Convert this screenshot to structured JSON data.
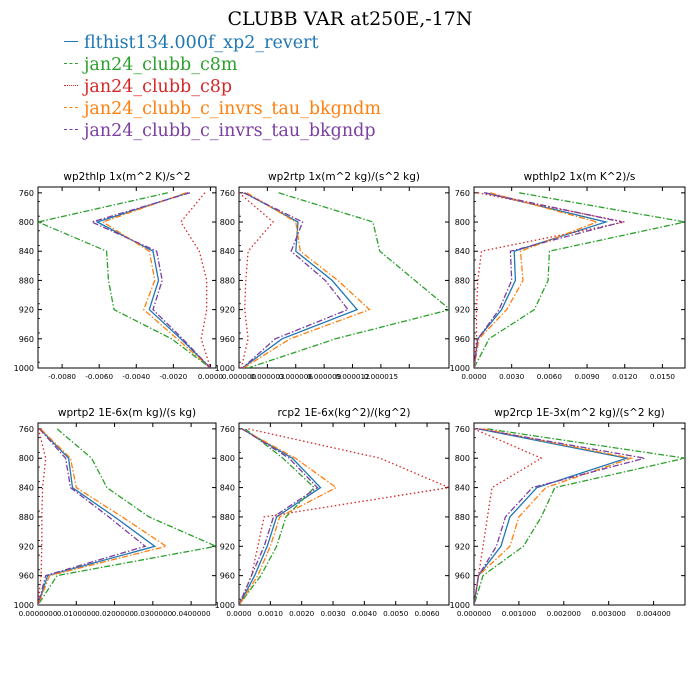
{
  "figure": {
    "title": "CLUBB VAR at250E,-17N"
  },
  "legend": [
    {
      "name": "flthist134.000f_xp2_revert",
      "color": "#1f77b4",
      "dash": "solid"
    },
    {
      "name": "jan24_clubb_c8m",
      "color": "#2ca02c",
      "dash": "dashdot"
    },
    {
      "name": "jan24_clubb_c8p",
      "color": "#d62728",
      "dash": "dotted"
    },
    {
      "name": "jan24_clubb_c_invrs_tau_bkgndm",
      "color": "#ff7f0e",
      "dash": "dashdot"
    },
    {
      "name": "jan24_clubb_c_invrs_tau_bkgndp",
      "color": "#7b3fa0",
      "dash": "dashdot"
    }
  ],
  "chart_data": [
    {
      "type": "line",
      "title": "wp2thlp   1x(m^2 K)/s^2",
      "y": [
        760,
        800,
        840,
        880,
        920,
        960,
        1000
      ],
      "yticks": [
        760,
        800,
        840,
        880,
        920,
        960,
        1000
      ],
      "ylim": [
        1000,
        752
      ],
      "xlim": [
        -0.0093,
        0.0003
      ],
      "xticks": [
        -0.008,
        -0.006,
        -0.004,
        -0.002,
        0.0
      ],
      "xticklabels": [
        "-0.0080",
        "-0.0060",
        "-0.0040",
        "-0.0020",
        "0.0000"
      ],
      "series": [
        {
          "name": "flthist134.000f_xp2_revert",
          "values": [
            -0.0012,
            -0.0061,
            -0.0031,
            -0.0028,
            -0.0033,
            -0.0016,
            0.0
          ]
        },
        {
          "name": "jan24_clubb_c8m",
          "values": [
            -0.0023,
            -0.0093,
            -0.0056,
            -0.0055,
            -0.0052,
            -0.0021,
            0.0
          ]
        },
        {
          "name": "jan24_clubb_c8p",
          "values": [
            -0.0003,
            -0.0016,
            -0.0006,
            -0.0002,
            -0.0002,
            -0.0005,
            0.0
          ]
        },
        {
          "name": "jan24_clubb_c_invrs_tau_bkgndm",
          "values": [
            -0.0013,
            -0.0058,
            -0.0033,
            -0.003,
            -0.0036,
            -0.0018,
            0.0
          ]
        },
        {
          "name": "jan24_clubb_c_invrs_tau_bkgndp",
          "values": [
            -0.0011,
            -0.0064,
            -0.0029,
            -0.0026,
            -0.0031,
            -0.0015,
            0.0
          ]
        }
      ]
    },
    {
      "type": "line",
      "title": "wp2rtp   1x(m^2 kg)/(s^2 kg)",
      "y": [
        760,
        800,
        840,
        880,
        920,
        960,
        1000
      ],
      "yticks": [
        760,
        800,
        840,
        880,
        920,
        960,
        1000
      ],
      "ylim": [
        1000,
        752
      ],
      "xlim": [
        0.0,
        1.85e-05
      ],
      "xticks": [
        0.0,
        2.5e-06,
        5e-06,
        7.5e-06,
        1e-05,
        1.25e-05,
        1.5e-05
      ],
      "xticklabels": [
        "0.000000",
        "0.000003",
        "0.000006",
        "0.000009",
        "0.000012",
        "0.000015",
        ""
      ],
      "series": [
        {
          "name": "flthist134.000f_xp2_revert",
          "values": [
            5e-07,
            5.2e-06,
            5e-06,
            8.2e-06,
            1.04e-05,
            3.8e-06,
            3e-07
          ]
        },
        {
          "name": "jan24_clubb_c8m",
          "values": [
            3.5e-06,
            1.18e-05,
            1.24e-05,
            1.55e-05,
            1.86e-05,
            8.5e-06,
            8e-07
          ]
        },
        {
          "name": "jan24_clubb_c8p",
          "values": [
            0.0,
            3e-06,
            8e-07,
            6e-07,
            5e-07,
            8e-07,
            2e-07
          ]
        },
        {
          "name": "jan24_clubb_c_invrs_tau_bkgndm",
          "values": [
            7e-07,
            5e-06,
            5.4e-06,
            8.7e-06,
            1.15e-05,
            4.5e-06,
            4e-07
          ]
        },
        {
          "name": "jan24_clubb_c_invrs_tau_bkgndp",
          "values": [
            4e-07,
            5.6e-06,
            4.6e-06,
            7.6e-06,
            9.6e-06,
            3.2e-06,
            3e-07
          ]
        }
      ]
    },
    {
      "type": "line",
      "title": "wpthlp2   1x(m K^2)/s",
      "y": [
        760,
        800,
        840,
        880,
        920,
        960,
        1000
      ],
      "yticks": [
        760,
        800,
        840,
        880,
        920,
        960,
        1000
      ],
      "ylim": [
        1000,
        752
      ],
      "xlim": [
        0.0,
        0.0168
      ],
      "xticks": [
        0.0,
        0.003,
        0.006,
        0.009,
        0.012,
        0.015
      ],
      "xticklabels": [
        "0.0000",
        "0.0030",
        "0.0060",
        "0.0090",
        "0.0120",
        "0.0150"
      ],
      "series": [
        {
          "name": "flthist134.000f_xp2_revert",
          "values": [
            0.0009,
            0.0105,
            0.0032,
            0.0033,
            0.0022,
            0.0003,
            0.0
          ]
        },
        {
          "name": "jan24_clubb_c8m",
          "values": [
            0.0036,
            0.0168,
            0.006,
            0.0059,
            0.0048,
            0.0012,
            0.0
          ]
        },
        {
          "name": "jan24_clubb_c8p",
          "values": [
            0.0003,
            0.012,
            0.0006,
            0.0003,
            0.0002,
            0.0002,
            0.0
          ]
        },
        {
          "name": "jan24_clubb_c_invrs_tau_bkgndm",
          "values": [
            0.0013,
            0.0098,
            0.0037,
            0.0039,
            0.0026,
            0.0004,
            0.0
          ]
        },
        {
          "name": "jan24_clubb_c_invrs_tau_bkgndp",
          "values": [
            0.0008,
            0.0118,
            0.0029,
            0.003,
            0.002,
            0.0003,
            0.0
          ]
        }
      ]
    },
    {
      "type": "line",
      "title": "wprtp2   1E-6x(m kg)/(s kg)",
      "y": [
        760,
        800,
        840,
        880,
        920,
        960,
        1000
      ],
      "yticks": [
        760,
        800,
        840,
        880,
        920,
        960,
        1000
      ],
      "ylim": [
        1000,
        752
      ],
      "xlim": [
        0.0,
        0.0465
      ],
      "xticks": [
        0.0,
        0.01,
        0.02,
        0.03,
        0.04
      ],
      "xticklabels": [
        "0.0000000",
        "0.0100000",
        "0.0200000",
        "0.0300000",
        "0.0400000"
      ],
      "series": [
        {
          "name": "flthist134.000f_xp2_revert",
          "values": [
            0.0005,
            0.008,
            0.009,
            0.02,
            0.0305,
            0.0025,
            0.0
          ]
        },
        {
          "name": "jan24_clubb_c8m",
          "values": [
            0.005,
            0.014,
            0.018,
            0.029,
            0.0465,
            0.005,
            0.0
          ]
        },
        {
          "name": "jan24_clubb_c8p",
          "values": [
            0.0001,
            0.002,
            0.0012,
            0.001,
            0.001,
            0.0008,
            0.0
          ]
        },
        {
          "name": "jan24_clubb_c_invrs_tau_bkgndm",
          "values": [
            0.0007,
            0.0085,
            0.01,
            0.022,
            0.0335,
            0.003,
            0.0
          ]
        },
        {
          "name": "jan24_clubb_c_invrs_tau_bkgndp",
          "values": [
            0.0004,
            0.0072,
            0.0085,
            0.0185,
            0.028,
            0.002,
            0.0
          ]
        }
      ]
    },
    {
      "type": "line",
      "title": "rcp2   1E-6x(kg^2)/(kg^2)",
      "y": [
        760,
        800,
        840,
        880,
        920,
        960,
        1000
      ],
      "yticks": [
        760,
        800,
        840,
        880,
        920,
        960,
        1000
      ],
      "ylim": [
        1000,
        752
      ],
      "xlim": [
        0.0,
        0.0067
      ],
      "xticks": [
        0.0,
        0.001,
        0.002,
        0.003,
        0.004,
        0.005,
        0.006
      ],
      "xticklabels": [
        "0.0000",
        "0.0010",
        "0.0020",
        "0.0030",
        "0.0040",
        "0.0050",
        "0.0060"
      ],
      "series": [
        {
          "name": "flthist134.000f_xp2_revert",
          "values": [
            0.0001,
            0.0017,
            0.0026,
            0.0012,
            0.0009,
            0.0005,
            0.0
          ]
        },
        {
          "name": "jan24_clubb_c8m",
          "values": [
            0.0002,
            0.0014,
            0.0024,
            0.0015,
            0.0012,
            0.0007,
            0.0
          ]
        },
        {
          "name": "jan24_clubb_c8p",
          "values": [
            0.0003,
            0.0045,
            0.0067,
            0.0008,
            0.0006,
            0.0004,
            0.0
          ]
        },
        {
          "name": "jan24_clubb_c_invrs_tau_bkgndm",
          "values": [
            0.0001,
            0.0018,
            0.0031,
            0.0013,
            0.001,
            0.0006,
            0.0
          ]
        },
        {
          "name": "jan24_clubb_c_invrs_tau_bkgndp",
          "values": [
            0.0001,
            0.0016,
            0.0025,
            0.0011,
            0.0008,
            0.0004,
            0.0
          ]
        }
      ]
    },
    {
      "type": "line",
      "title": "wp2rcp   1E-3x(m^2 kg)/(s^2 kg)",
      "y": [
        760,
        800,
        840,
        880,
        920,
        960,
        1000
      ],
      "yticks": [
        760,
        800,
        840,
        880,
        920,
        960,
        1000
      ],
      "ylim": [
        1000,
        752
      ],
      "xlim": [
        0.0,
        0.0047
      ],
      "xticks": [
        0.0,
        0.001,
        0.002,
        0.003,
        0.004
      ],
      "xticklabels": [
        "0.000000",
        "0.001000",
        "0.002000",
        "0.003000",
        "0.004000"
      ],
      "series": [
        {
          "name": "flthist134.000f_xp2_revert",
          "values": [
            0.0001,
            0.0034,
            0.0014,
            0.0008,
            0.0006,
            0.0001,
            0.0
          ]
        },
        {
          "name": "jan24_clubb_c8m",
          "values": [
            0.0003,
            0.0047,
            0.0018,
            0.0015,
            0.0011,
            0.0002,
            0.0
          ]
        },
        {
          "name": "jan24_clubb_c8p",
          "values": [
            0.0,
            0.0015,
            0.0004,
            0.0003,
            0.0002,
            0.0001,
            0.0
          ]
        },
        {
          "name": "jan24_clubb_c_invrs_tau_bkgndm",
          "values": [
            0.0002,
            0.0035,
            0.0016,
            0.001,
            0.0008,
            0.0001,
            0.0
          ]
        },
        {
          "name": "jan24_clubb_c_invrs_tau_bkgndp",
          "values": [
            0.0001,
            0.0038,
            0.0013,
            0.0007,
            0.0005,
            0.0001,
            0.0
          ]
        }
      ]
    }
  ]
}
